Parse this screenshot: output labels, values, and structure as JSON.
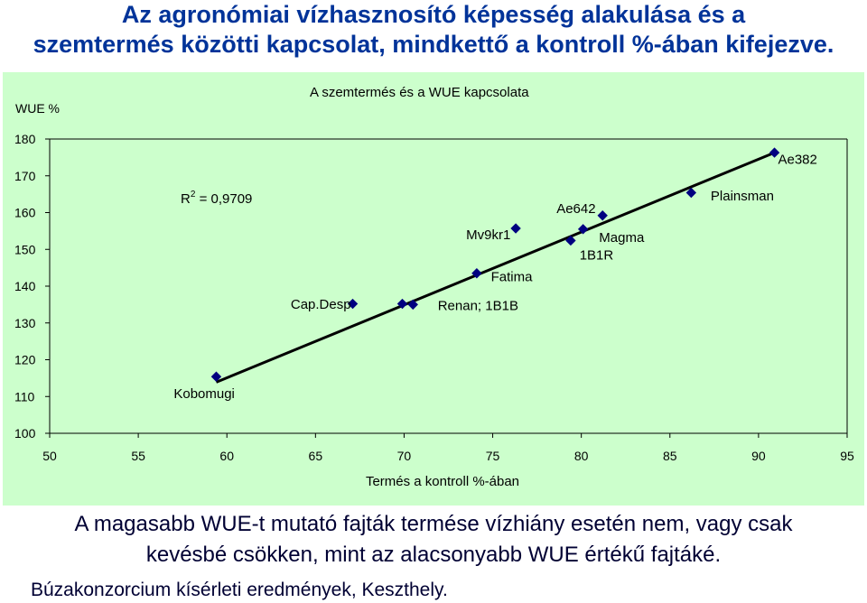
{
  "slide": {
    "title_line1": "Az agronómiai vízhasznosító képesség alakulása és a",
    "title_line2": "szemtermés közötti kapcsolat, mindkettő a kontroll %-ában kifejezve.",
    "note_line1": "A magasabb WUE-t mutató fajták termése vízhiány esetén nem, vagy csak",
    "note_line2": "kevésbé csökken, mint az alacsonyabb WUE értékű fajtáké.",
    "source": "Búzakonzorcium kísérleti eredmények, Keszthely."
  },
  "colors": {
    "title": "#003399",
    "panel_background": "#ccffcc",
    "marker": "#000080",
    "trendline": "#000000"
  },
  "chart_data": {
    "type": "scatter",
    "title": "A szemtermés és a WUE kapcsolata",
    "xlabel": "Termés a kontroll %-ában",
    "ylabel": "WUE %",
    "xlim": [
      50,
      95
    ],
    "ylim": [
      100,
      180
    ],
    "xticks": [
      50,
      55,
      60,
      65,
      70,
      75,
      80,
      85,
      90,
      95
    ],
    "yticks": [
      100,
      110,
      120,
      130,
      140,
      150,
      160,
      170,
      180
    ],
    "grid": false,
    "legend": "none",
    "marker": "diamond",
    "points": [
      {
        "x": 59.4,
        "y": 115.4
      },
      {
        "x": 67.1,
        "y": 135.2
      },
      {
        "x": 69.9,
        "y": 135.2
      },
      {
        "x": 70.5,
        "y": 135.0
      },
      {
        "x": 74.1,
        "y": 143.5
      },
      {
        "x": 76.3,
        "y": 155.7
      },
      {
        "x": 79.4,
        "y": 152.4
      },
      {
        "x": 80.1,
        "y": 155.5
      },
      {
        "x": 81.2,
        "y": 159.2
      },
      {
        "x": 86.2,
        "y": 165.4
      },
      {
        "x": 90.9,
        "y": 176.3
      }
    ],
    "trendline": {
      "type": "linear",
      "from": {
        "x": 59.4,
        "y": 113.9
      },
      "to": {
        "x": 90.9,
        "y": 176.3
      },
      "r2_label": "R",
      "r2_sup": "2",
      "r2_value": " = 0,9709"
    },
    "annotations": [
      {
        "text": "Kobomugi",
        "x": 57.0,
        "y": 109.6
      },
      {
        "text": "Cap.Desp",
        "x": 63.6,
        "y": 133.9
      },
      {
        "text": "Renan; 1B1B",
        "x": 71.9,
        "y": 133.5
      },
      {
        "text": "Mv9kr1",
        "x": 73.5,
        "y": 152.7
      },
      {
        "text": "Fatima",
        "x": 74.9,
        "y": 141.3
      },
      {
        "text": "Ae642",
        "x": 78.6,
        "y": 159.9
      },
      {
        "text": "Magma",
        "x": 81.0,
        "y": 152.0
      },
      {
        "text": "1B1R",
        "x": 79.9,
        "y": 147.3
      },
      {
        "text": "Plainsman",
        "x": 87.3,
        "y": 163.3
      },
      {
        "text": "Ae382",
        "x": 91.1,
        "y": 173.3
      }
    ]
  }
}
